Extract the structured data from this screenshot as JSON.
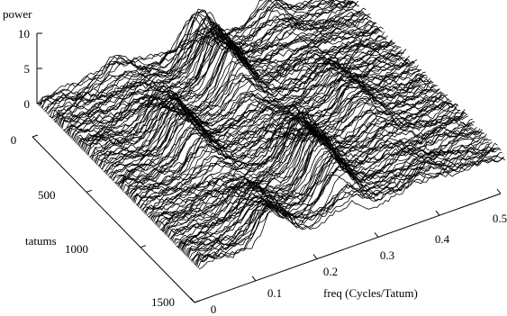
{
  "chart_data": {
    "type": "surface",
    "zlabel": "power",
    "ylabel": "tatums",
    "xlabel": "freq (Cycles/Tatum)",
    "x_range": [
      0,
      0.5
    ],
    "y_range": [
      0,
      1500
    ],
    "z_range": [
      0,
      10
    ],
    "z_ticks": [
      "0",
      "5",
      "10"
    ],
    "y_ticks": [
      "0",
      "500",
      "1000",
      "1500"
    ],
    "x_ticks": [
      "0",
      "0.1",
      "0.2",
      "0.3",
      "0.4",
      "0.5"
    ],
    "grid": false,
    "legend": "none",
    "line_color": "#000000",
    "num_slices": 150,
    "peaks": [
      {
        "freq": 0.125,
        "power": 4.5,
        "width": 0.02
      },
      {
        "freq": 0.25,
        "power": 6.5,
        "width": 0.02
      },
      {
        "freq": 0.375,
        "power": 3.0,
        "width": 0.02
      }
    ]
  }
}
